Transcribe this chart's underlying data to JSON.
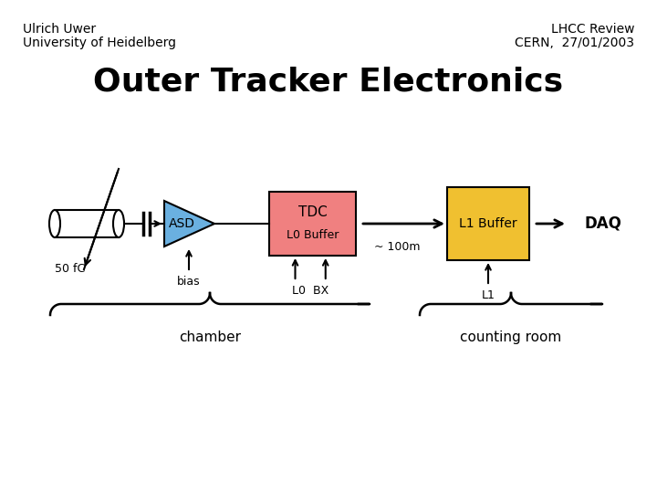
{
  "title": "Outer Tracker Electronics",
  "author_left1": "Ulrich Uwer",
  "author_left2": "University of Heidelberg",
  "author_right1": "LHCC Review",
  "author_right2": "CERN,  27/01/2003",
  "bg_color": "#ffffff",
  "asd_color": "#6ab0e0",
  "tdc_color": "#f08080",
  "l1_color": "#f0c030",
  "label_50fc": "50 fC",
  "label_bias": "bias",
  "label_l0bx": "L0  BX",
  "label_100m": "~ 100m",
  "label_l1": "L1",
  "label_chamber": "chamber",
  "label_counting": "counting room",
  "label_daq": "DAQ",
  "label_asd": "ASD",
  "label_tdc": "TDC",
  "label_l0buffer": "L0 Buffer",
  "label_l1buffer": "L1 Buffer"
}
